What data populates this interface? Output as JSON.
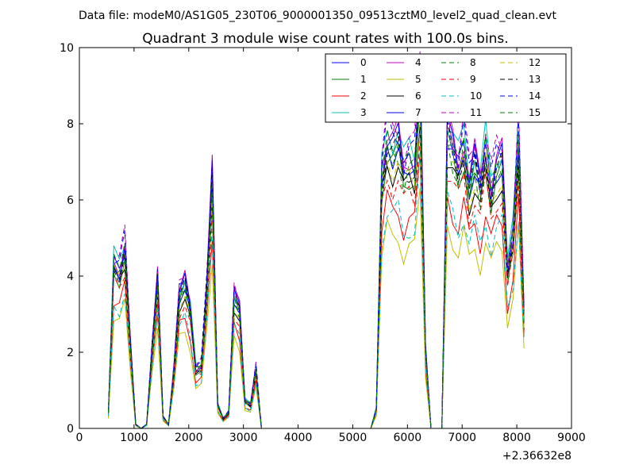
{
  "figure": {
    "suptitle": "Data file: modeM0/AS1G05_230T06_9000001350_09513cztM0_level2_quad_clean.evt"
  },
  "chart_data": {
    "type": "line",
    "title": "Quadrant 3 module wise count rates with 100.0s bins.",
    "xlabel": "",
    "ylabel": "",
    "xlim": [
      0,
      9000
    ],
    "ylim": [
      0,
      10
    ],
    "x_offset_label": "+2.36632e8",
    "x_ticks": [
      "0",
      "1000",
      "2000",
      "3000",
      "4000",
      "5000",
      "6000",
      "7000",
      "8000",
      "9000"
    ],
    "y_ticks": [
      "0",
      "2",
      "4",
      "6",
      "8",
      "10"
    ],
    "legend_location": "upper right",
    "legend_columns": 4,
    "x": [
      530,
      630,
      730,
      830,
      930,
      1030,
      1130,
      1230,
      1330,
      1430,
      1530,
      1630,
      1730,
      1830,
      1930,
      2030,
      2130,
      2230,
      2330,
      2430,
      2530,
      2630,
      2730,
      2830,
      2930,
      3030,
      3130,
      3230,
      3330,
      3430,
      3530,
      3630,
      3730,
      3830,
      3930,
      4030,
      4130,
      4230,
      4330,
      4430,
      4530,
      4630,
      4730,
      4830,
      4930,
      5030,
      5130,
      5230,
      5330,
      5430,
      5530,
      5630,
      5730,
      5830,
      5930,
      6030,
      6130,
      6230,
      6330,
      6430,
      6530,
      6630,
      6730,
      6830,
      6930,
      7030,
      7130,
      7230,
      7330,
      7430,
      7530,
      7630,
      7730,
      7830,
      7930,
      8030,
      8130
    ],
    "base_profile": [
      0.4,
      4.2,
      4.0,
      4.6,
      2.2,
      0.1,
      0.0,
      0.1,
      2.0,
      3.8,
      0.3,
      0.1,
      1.5,
      3.4,
      3.7,
      3.0,
      1.5,
      1.6,
      3.6,
      6.4,
      0.6,
      0.25,
      0.4,
      3.4,
      3.0,
      0.7,
      0.6,
      1.5,
      0.0,
      0.0,
      0.0,
      0.0,
      0.0,
      0.0,
      0.0,
      0.0,
      0.0,
      0.0,
      0.0,
      0.0,
      0.0,
      0.0,
      0.0,
      0.0,
      0.0,
      0.0,
      0.0,
      0.0,
      0.0,
      0.5,
      6.4,
      7.4,
      7.1,
      7.3,
      6.5,
      6.8,
      6.7,
      8.9,
      2.0,
      0.0,
      0.0,
      0.0,
      7.6,
      7.1,
      6.6,
      7.3,
      6.2,
      6.8,
      6.1,
      7.1,
      6.1,
      6.7,
      6.8,
      4.0,
      4.9,
      7.3,
      2.9
    ],
    "series": [
      {
        "name": "0",
        "style": "solid",
        "color": "#0000ff",
        "scale": 1.02
      },
      {
        "name": "1",
        "style": "solid",
        "color": "#008000",
        "scale": 0.98
      },
      {
        "name": "2",
        "style": "solid",
        "color": "#ff0000",
        "scale": 0.8
      },
      {
        "name": "3",
        "style": "solid",
        "color": "#00bfbf",
        "scale": 1.08
      },
      {
        "name": "4",
        "style": "solid",
        "color": "#bf00bf",
        "scale": 1.06
      },
      {
        "name": "5",
        "style": "solid",
        "color": "#bfbf00",
        "scale": 0.7
      },
      {
        "name": "6",
        "style": "solid",
        "color": "#000000",
        "scale": 0.95
      },
      {
        "name": "7",
        "style": "solid",
        "color": "#0000ff",
        "scale": 1.04
      },
      {
        "name": "8",
        "style": "dashed",
        "color": "#008000",
        "scale": 1.0
      },
      {
        "name": "9",
        "style": "dashed",
        "color": "#ff0000",
        "scale": 0.9
      },
      {
        "name": "10",
        "style": "dashed",
        "color": "#00bfbf",
        "scale": 0.78
      },
      {
        "name": "11",
        "style": "dashed",
        "color": "#bf00bf",
        "scale": 1.1
      },
      {
        "name": "12",
        "style": "dashed",
        "color": "#bfbf00",
        "scale": 0.97
      },
      {
        "name": "13",
        "style": "dashed",
        "color": "#000000",
        "scale": 1.01
      },
      {
        "name": "14",
        "style": "dashed",
        "color": "#0000ff",
        "scale": 1.07
      },
      {
        "name": "15",
        "style": "dashed",
        "color": "#008000",
        "scale": 1.03
      }
    ]
  }
}
